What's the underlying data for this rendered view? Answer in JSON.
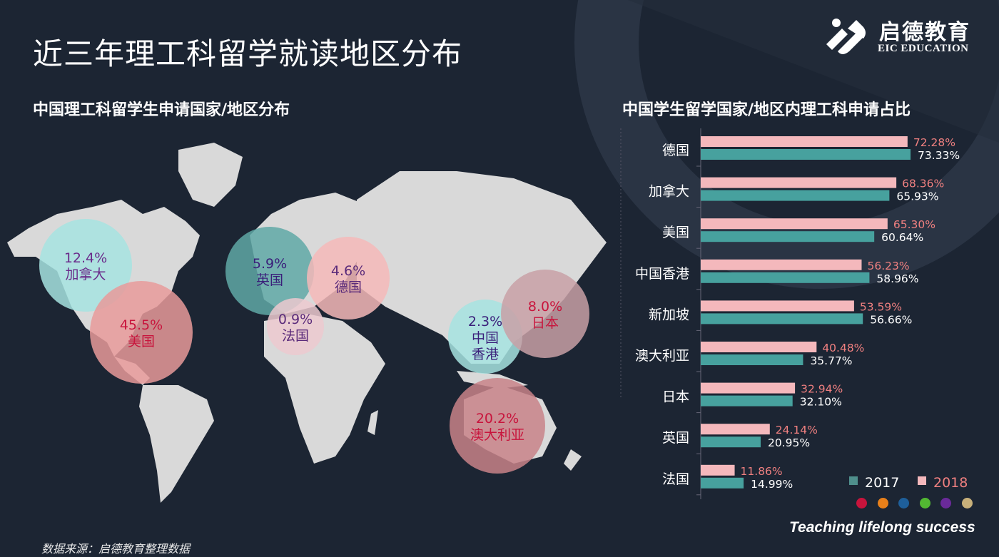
{
  "title": "近三年理工科留学就读地区分布",
  "logo": {
    "cn": "启德教育",
    "en": "EIC EDUCATION"
  },
  "map": {
    "subtitle": "中国理工科留学生申请国家/地区分布",
    "bubbles": [
      {
        "label": "加拿大",
        "value": "12.4%",
        "color": "#a6e3e0",
        "text_color": "#6a2a8a"
      },
      {
        "label": "美国",
        "value": "45.5%",
        "color": "#e89a9a",
        "text_color": "#c8143c"
      },
      {
        "label": "英国",
        "value": "5.9%",
        "color": "#5fa8a6",
        "text_color": "#3a1f7a"
      },
      {
        "label": "法国",
        "value": "0.9%",
        "color": "#ecc9cf",
        "text_color": "#5a2a7a"
      },
      {
        "label": "德国",
        "value": "4.6%",
        "color": "#f4b8b8",
        "text_color": "#5a2a7a"
      },
      {
        "label": "中国\n香港",
        "value": "2.3%",
        "color": "#a6e3e0",
        "text_color": "#3a1f7a"
      },
      {
        "label": "日本",
        "value": "8.0%",
        "color": "#c8a0a6",
        "text_color": "#c8143c"
      },
      {
        "label": "澳大利亚",
        "value": "20.2%",
        "color": "#c88288",
        "text_color": "#c8143c"
      }
    ]
  },
  "chart_data": {
    "type": "bar",
    "orientation": "horizontal",
    "title": "中国学生留学国家/地区内理工科申请占比",
    "categories": [
      "德国",
      "加拿大",
      "美国",
      "中国香港",
      "新加坡",
      "澳大利亚",
      "日本",
      "英国",
      "法国"
    ],
    "series": [
      {
        "name": "2018",
        "color": "#f4b8bc",
        "label_color": "#f08080",
        "values": [
          72.28,
          68.36,
          65.3,
          56.23,
          53.59,
          40.48,
          32.94,
          24.14,
          11.86
        ],
        "labels": [
          "72.28%",
          "68.36%",
          "65.30%",
          "56.23%",
          "53.59%",
          "40.48%",
          "32.94%",
          "24.14%",
          "11.86%"
        ]
      },
      {
        "name": "2017",
        "color": "#47a19e",
        "label_color": "#ffffff",
        "values": [
          73.33,
          65.93,
          60.64,
          58.96,
          56.66,
          35.77,
          32.1,
          20.95,
          14.99
        ],
        "labels": [
          "73.33%",
          "65.93%",
          "60.64%",
          "58.96%",
          "56.66%",
          "35.77%",
          "32.10%",
          "20.95%",
          "14.99%"
        ]
      }
    ],
    "legend": [
      "2017",
      "2018"
    ],
    "legend_position": "bottom-right"
  },
  "footer": {
    "source": "数据来源：启德教育整理数据",
    "tagline": "Teaching lifelong success",
    "dot_colors": [
      "#c8143c",
      "#e8801a",
      "#1e5f9a",
      "#52b832",
      "#6a2a9a",
      "#c8b07a"
    ]
  }
}
